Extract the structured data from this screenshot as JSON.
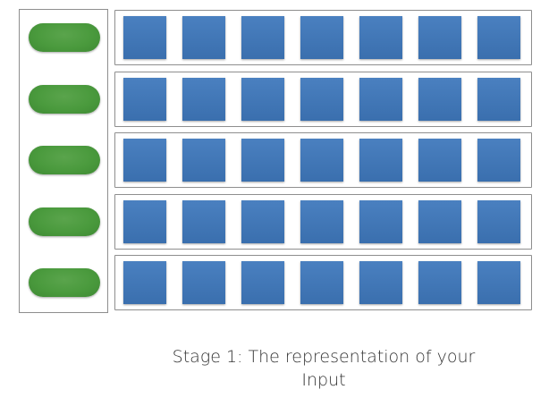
{
  "diagram": {
    "rows": 5,
    "columns": 7,
    "colors": {
      "pill": "#4a9a3d",
      "cell": "#3f74b5",
      "frame": "#8e8e8e"
    }
  },
  "caption": {
    "line1": "Stage 1: The representation of your",
    "line2": "Input"
  }
}
